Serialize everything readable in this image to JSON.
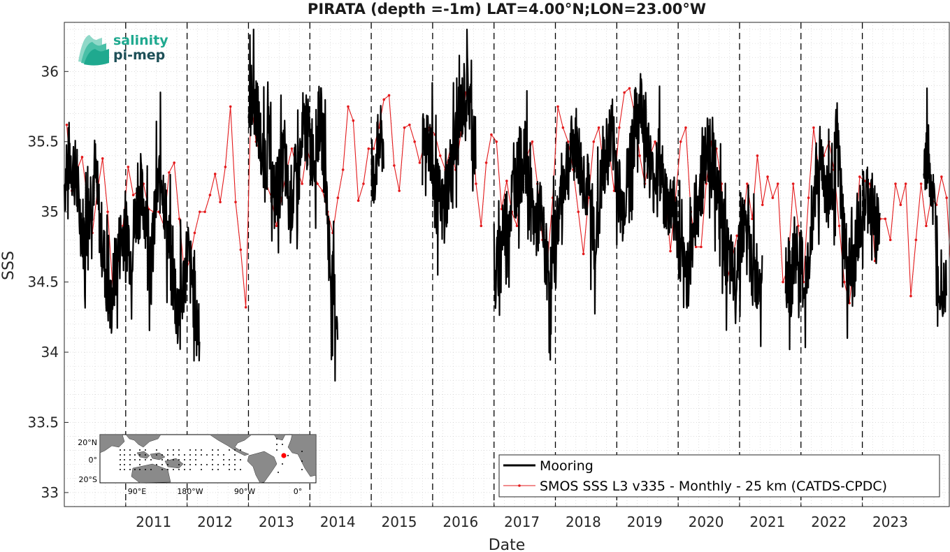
{
  "chart_data": {
    "type": "line",
    "title": "PIRATA (depth =-1m) LAT=4.00°N;LON=23.00°W",
    "xlabel": "Date",
    "ylabel": "SSS",
    "xlim": [
      "2010-01-01",
      "2024-06-01"
    ],
    "ylim": [
      32.9,
      36.35
    ],
    "x_ticks": [
      "2011",
      "2012",
      "2013",
      "2014",
      "2015",
      "2016",
      "2017",
      "2018",
      "2019",
      "2020",
      "2021",
      "2022",
      "2023"
    ],
    "y_ticks": [
      "33",
      "33.5",
      "34",
      "34.5",
      "35",
      "35.5",
      "36"
    ],
    "grid": true,
    "year_dividers": "dashed vertical lines at each January 1st",
    "legend_position": "bottom-right",
    "series": [
      {
        "name": "Mooring",
        "color": "#000000",
        "style": "thick line, daily values",
        "segments": [
          {
            "x": [
              "2010-01",
              "2010-02",
              "2010-03",
              "2010-04",
              "2010-05",
              "2010-06",
              "2010-07",
              "2010-08",
              "2010-09",
              "2010-10",
              "2010-11",
              "2010-12",
              "2011-01",
              "2011-02",
              "2011-03",
              "2011-04",
              "2011-05",
              "2011-06",
              "2011-07",
              "2011-08",
              "2011-09",
              "2011-10",
              "2011-11",
              "2011-12",
              "2012-01",
              "2012-02",
              "2012-03"
            ],
            "y": [
              35.2,
              35.4,
              35.3,
              35.0,
              34.8,
              35.1,
              35.3,
              34.9,
              34.6,
              34.3,
              34.6,
              34.8,
              34.9,
              34.7,
              35.0,
              35.1,
              35.0,
              34.6,
              35.1,
              35.3,
              34.9,
              34.6,
              34.3,
              34.4,
              34.7,
              34.5,
              34.2
            ]
          },
          {
            "x": [
              "2013-01",
              "2013-02",
              "2013-03",
              "2013-04",
              "2013-05",
              "2013-06",
              "2013-07",
              "2013-08",
              "2013-09",
              "2013-10",
              "2013-11",
              "2013-12",
              "2014-01",
              "2014-02",
              "2014-03",
              "2014-04",
              "2014-05",
              "2014-06"
            ],
            "y": [
              35.7,
              35.9,
              35.6,
              35.3,
              35.5,
              35.1,
              35.2,
              35.4,
              35.0,
              35.2,
              35.3,
              35.6,
              35.5,
              35.4,
              35.7,
              35.3,
              34.6,
              34.3
            ]
          },
          {
            "x": [
              "2015-01",
              "2015-02",
              "2015-03"
            ],
            "y": [
              35.1,
              35.4,
              35.5
            ]
          },
          {
            "x": [
              "2015-11",
              "2015-12",
              "2016-01",
              "2016-02",
              "2016-03",
              "2016-04",
              "2016-05",
              "2016-06",
              "2016-07",
              "2016-08",
              "2016-09"
            ],
            "y": [
              35.4,
              35.6,
              35.3,
              35.1,
              35.0,
              35.2,
              35.4,
              35.6,
              35.8,
              35.9,
              35.5
            ]
          },
          {
            "x": [
              "2017-01",
              "2017-02",
              "2017-03",
              "2017-04",
              "2017-05",
              "2017-06",
              "2017-07",
              "2017-08",
              "2017-09",
              "2017-10",
              "2017-11",
              "2017-12",
              "2018-01",
              "2018-02",
              "2018-03",
              "2018-04",
              "2018-05",
              "2018-06",
              "2018-07",
              "2018-08",
              "2018-09",
              "2018-10",
              "2018-11",
              "2018-12",
              "2019-01",
              "2019-02",
              "2019-03",
              "2019-04",
              "2019-05",
              "2019-06",
              "2019-07",
              "2019-08",
              "2019-09",
              "2019-10",
              "2019-11",
              "2019-12",
              "2020-01",
              "2020-02",
              "2020-03",
              "2020-04",
              "2020-05",
              "2020-06",
              "2020-07",
              "2020-08",
              "2020-09",
              "2020-10",
              "2020-11",
              "2020-12",
              "2021-01",
              "2021-02",
              "2021-03",
              "2021-04",
              "2021-05"
            ],
            "y": [
              34.4,
              34.7,
              34.9,
              35.0,
              35.2,
              35.3,
              35.4,
              35.1,
              34.9,
              35.0,
              34.7,
              34.5,
              34.8,
              35.1,
              35.3,
              35.4,
              35.5,
              35.3,
              35.2,
              35.0,
              34.8,
              35.2,
              35.4,
              35.6,
              35.3,
              35.0,
              35.2,
              35.5,
              35.7,
              35.8,
              35.5,
              35.2,
              35.4,
              35.2,
              35.0,
              35.1,
              34.8,
              34.5,
              34.6,
              34.9,
              35.1,
              35.3,
              35.5,
              35.4,
              35.0,
              34.8,
              34.6,
              34.5,
              34.8,
              34.9,
              34.7,
              34.5,
              34.6
            ]
          },
          {
            "x": [
              "2021-10",
              "2021-11",
              "2021-12",
              "2022-01",
              "2022-02",
              "2022-03",
              "2022-04",
              "2022-05",
              "2022-06",
              "2022-07",
              "2022-08",
              "2022-09",
              "2022-10",
              "2022-11",
              "2022-12",
              "2023-01",
              "2023-02",
              "2023-03",
              "2023-04"
            ],
            "y": [
              34.6,
              34.5,
              34.7,
              34.6,
              34.4,
              34.9,
              35.3,
              35.4,
              35.1,
              35.2,
              35.5,
              35.0,
              34.6,
              34.5,
              34.8,
              35.0,
              35.1,
              35.0,
              34.9
            ]
          },
          {
            "x": [
              "2024-01",
              "2024-02",
              "2024-03",
              "2024-04",
              "2024-05"
            ],
            "y": [
              35.3,
              35.4,
              35.0,
              34.6,
              34.5
            ]
          }
        ]
      },
      {
        "name": "SMOS SSS L3 v335 - Monthly - 25 km (CATDS-CPDC)",
        "color": "#e31a1c",
        "style": "thin line with point markers",
        "x": [
          "2010-01",
          "2010-02",
          "2010-03",
          "2010-04",
          "2010-05",
          "2010-06",
          "2010-07",
          "2010-08",
          "2010-09",
          "2010-10",
          "2010-11",
          "2010-12",
          "2011-01",
          "2011-02",
          "2011-03",
          "2011-04",
          "2011-05",
          "2011-06",
          "2011-07",
          "2011-08",
          "2011-09",
          "2011-10",
          "2011-11",
          "2011-12",
          "2012-01",
          "2012-02",
          "2012-03",
          "2012-04",
          "2012-05",
          "2012-06",
          "2012-07",
          "2012-08",
          "2012-09",
          "2012-10",
          "2012-11",
          "2012-12",
          "2013-01",
          "2013-02",
          "2013-03",
          "2013-04",
          "2013-05",
          "2013-06",
          "2013-07",
          "2013-08",
          "2013-09",
          "2013-10",
          "2013-11",
          "2013-12",
          "2014-01",
          "2014-02",
          "2014-03",
          "2014-04",
          "2014-05",
          "2014-06",
          "2014-07",
          "2014-08",
          "2014-09",
          "2014-10",
          "2014-11",
          "2014-12",
          "2015-01",
          "2015-02",
          "2015-03",
          "2015-04",
          "2015-05",
          "2015-06",
          "2015-07",
          "2015-08",
          "2015-09",
          "2015-10",
          "2015-11",
          "2015-12",
          "2016-01",
          "2016-02",
          "2016-03",
          "2016-04",
          "2016-05",
          "2016-06",
          "2016-07",
          "2016-08",
          "2016-09",
          "2016-10",
          "2016-11",
          "2016-12",
          "2017-01",
          "2017-02",
          "2017-03",
          "2017-04",
          "2017-05",
          "2017-06",
          "2017-07",
          "2017-08",
          "2017-09",
          "2017-10",
          "2017-11",
          "2017-12",
          "2018-01",
          "2018-02",
          "2018-03",
          "2018-04",
          "2018-05",
          "2018-06",
          "2018-07",
          "2018-08",
          "2018-09",
          "2018-10",
          "2018-11",
          "2018-12",
          "2019-01",
          "2019-02",
          "2019-03",
          "2019-04",
          "2019-05",
          "2019-06",
          "2019-07",
          "2019-08",
          "2019-09",
          "2019-10",
          "2019-11",
          "2019-12",
          "2020-01",
          "2020-02",
          "2020-03",
          "2020-04",
          "2020-05",
          "2020-06",
          "2020-07",
          "2020-08",
          "2020-09",
          "2020-10",
          "2020-11",
          "2020-12",
          "2021-01",
          "2021-02",
          "2021-03",
          "2021-04",
          "2021-05",
          "2021-06",
          "2021-07",
          "2021-08",
          "2021-09",
          "2021-10",
          "2021-11",
          "2021-12",
          "2022-01",
          "2022-02",
          "2022-03",
          "2022-04",
          "2022-05",
          "2022-06",
          "2022-07",
          "2022-08",
          "2022-09",
          "2022-10",
          "2022-11",
          "2022-12",
          "2023-01",
          "2023-02",
          "2023-03",
          "2023-04",
          "2023-05",
          "2023-06",
          "2023-07",
          "2023-08",
          "2023-09",
          "2023-10",
          "2023-11",
          "2023-12",
          "2024-01",
          "2024-02",
          "2024-03",
          "2024-04",
          "2024-05",
          "2024-06"
        ],
        "y": [
          35.62,
          35.15,
          35.3,
          35.39,
          35.1,
          34.85,
          35.15,
          35.38,
          35.0,
          34.45,
          34.65,
          34.9,
          35.32,
          35.12,
          35.15,
          35.2,
          35.02,
          35.0,
          35.0,
          34.9,
          35.28,
          35.35,
          34.95,
          34.55,
          34.65,
          34.85,
          35.0,
          35.0,
          35.12,
          35.27,
          35.07,
          35.32,
          35.75,
          35.07,
          34.73,
          34.32,
          35.78,
          35.5,
          35.4,
          35.2,
          35.1,
          34.9,
          35.1,
          35.3,
          35.45,
          35.3,
          35.2,
          35.45,
          35.3,
          35.2,
          35.15,
          35.0,
          34.85,
          35.1,
          35.3,
          35.75,
          35.65,
          35.08,
          35.2,
          35.45,
          35.45,
          35.6,
          35.8,
          35.83,
          35.33,
          35.15,
          35.6,
          35.62,
          35.5,
          35.35,
          35.5,
          35.6,
          35.55,
          35.4,
          35.3,
          35.45,
          35.3,
          35.55,
          35.85,
          35.8,
          35.2,
          34.9,
          35.35,
          35.55,
          35.5,
          35.02,
          35.22,
          35.0,
          34.9,
          35.25,
          35.4,
          35.5,
          35.2,
          34.8,
          34.65,
          35.1,
          35.75,
          35.6,
          35.5,
          35.3,
          35.0,
          34.7,
          35.1,
          35.5,
          35.6,
          35.3,
          35.45,
          35.15,
          35.6,
          35.85,
          35.88,
          35.7,
          35.4,
          35.2,
          35.4,
          35.5,
          35.3,
          35.15,
          34.72,
          35.1,
          35.5,
          35.6,
          35.0,
          34.75,
          34.75,
          35.2,
          35.5,
          35.45,
          35.2,
          34.5,
          34.65,
          34.83,
          34.83,
          35.2,
          34.95,
          35.4,
          35.05,
          35.25,
          35.1,
          35.2,
          34.5,
          34.6,
          35.2,
          34.9,
          34.5,
          35.1,
          35.6,
          35.3,
          35.4,
          35.5,
          35.3,
          34.9,
          34.5,
          34.35,
          34.7,
          35.25,
          35.22,
          35.2,
          34.65,
          34.95,
          34.95,
          34.8,
          35.2,
          35.05,
          35.2,
          34.4,
          34.8,
          35.2,
          34.9,
          35.1,
          35.05,
          35.25,
          35.1,
          34.5
        ]
      }
    ],
    "inset_map": {
      "lat_ticks": [
        "20°N",
        "0°",
        "20°S"
      ],
      "lon_ticks": [
        "90°E",
        "180°W",
        "90°W",
        "0°"
      ],
      "marker_color": "#ff0000"
    }
  },
  "logo": {
    "line1": "salinity",
    "line2": "pi-mep"
  },
  "colors": {
    "mooring": "#000000",
    "smos": "#e31a1c",
    "grid": "#c8c8c8",
    "logo_teal": "#1fa98f",
    "logo_dark": "#1d4f57"
  }
}
